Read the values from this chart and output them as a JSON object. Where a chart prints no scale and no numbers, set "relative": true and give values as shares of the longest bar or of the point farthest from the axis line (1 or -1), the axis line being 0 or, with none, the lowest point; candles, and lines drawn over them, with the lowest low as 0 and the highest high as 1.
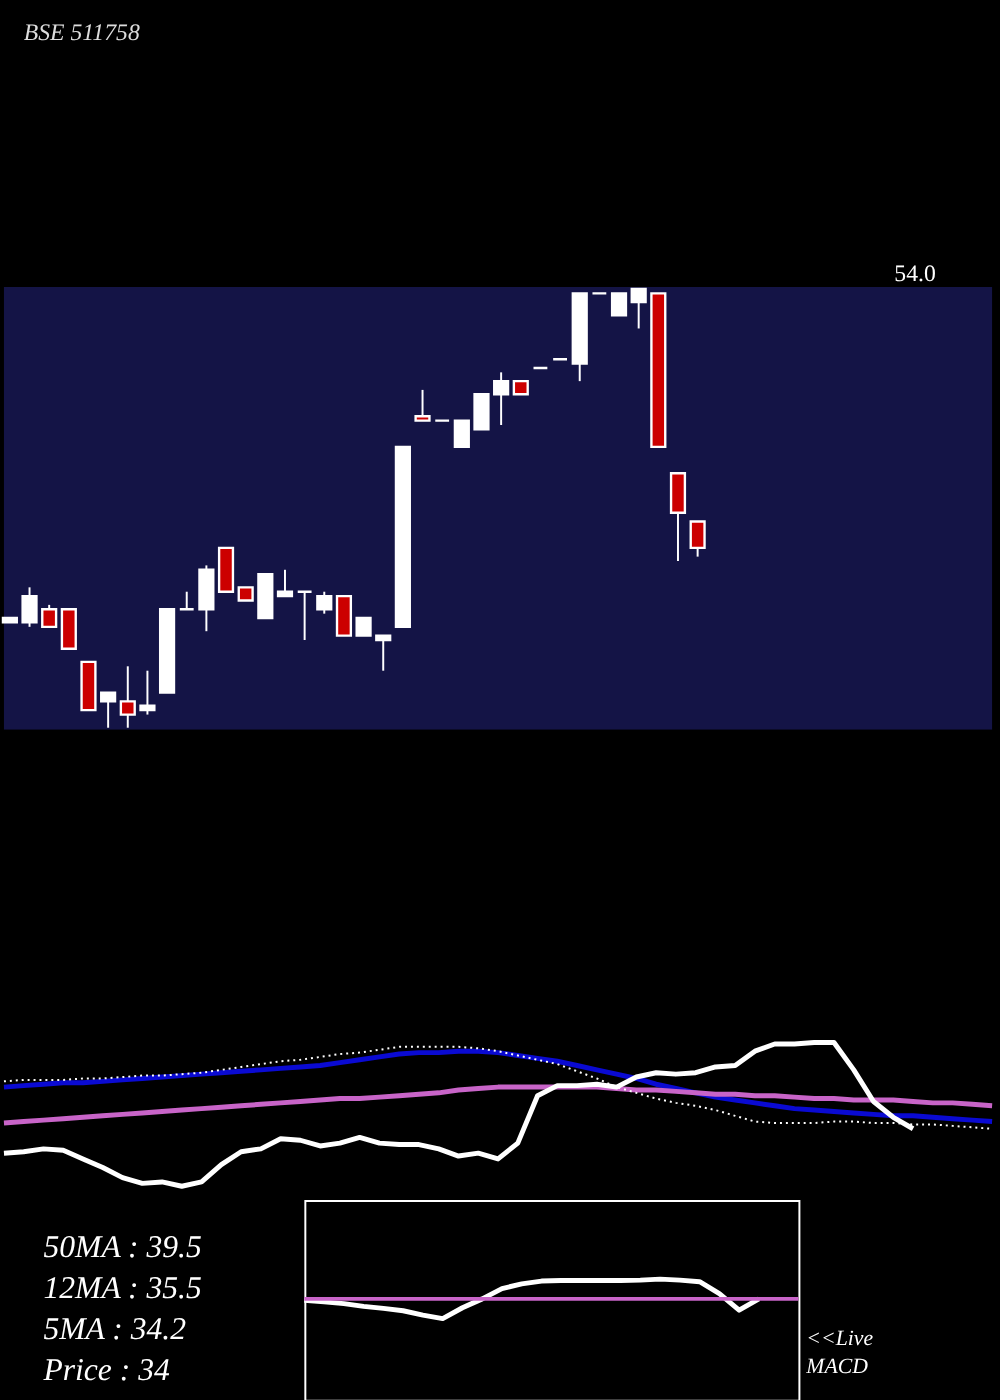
{
  "chart_data": [
    {
      "type": "candlestick",
      "title": "BSE 511758",
      "relative": true,
      "annotations": [
        "54.0"
      ],
      "categories": [
        null,
        null,
        null,
        null,
        null,
        null,
        null,
        null,
        null,
        null,
        null,
        null,
        null,
        null,
        null,
        null,
        null,
        null,
        null,
        null,
        null,
        null,
        null,
        null,
        null,
        null,
        null,
        null,
        null,
        null,
        null,
        null,
        null,
        null,
        null,
        null
      ],
      "ohlc": [
        [
          0.24,
          0.25,
          0.24,
          0.25
        ],
        [
          0.24,
          0.32,
          0.23,
          0.3
        ],
        [
          0.27,
          0.28,
          0.23,
          0.23
        ],
        [
          0.27,
          0.27,
          0.18,
          0.18
        ],
        [
          0.15,
          0.15,
          0.04,
          0.04
        ],
        [
          0.06,
          0.08,
          0,
          0.08
        ],
        [
          0.06,
          0.14,
          0,
          0.03
        ],
        [
          0.04,
          0.13,
          0.03,
          0.05
        ],
        [
          0.08,
          0.27,
          0.08,
          0.27
        ],
        [
          0.27,
          0.31,
          0.27,
          0.27
        ],
        [
          0.27,
          0.37,
          0.22,
          0.36
        ],
        [
          0.41,
          0.41,
          0.31,
          0.31
        ],
        [
          0.32,
          0.32,
          0.29,
          0.29
        ],
        [
          0.25,
          0.35,
          0.25,
          0.35
        ],
        [
          0.3,
          0.36,
          0.3,
          0.31
        ],
        [
          0.31,
          0.31,
          0.2,
          0.31
        ],
        [
          0.27,
          0.31,
          0.26,
          0.3
        ],
        [
          0.3,
          0.3,
          0.21,
          0.21
        ],
        [
          0.21,
          0.25,
          0.21,
          0.25
        ],
        [
          0.2,
          0.21,
          0.13,
          0.21
        ],
        [
          0.23,
          0.64,
          0.23,
          0.64
        ],
        [
          0.71,
          0.77,
          0.7,
          0.7
        ],
        [
          0.7,
          0.7,
          0.7,
          0.7
        ],
        [
          0.64,
          0.7,
          0.64,
          0.7
        ],
        [
          0.68,
          0.76,
          0.68,
          0.76
        ],
        [
          0.76,
          0.81,
          0.69,
          0.79
        ],
        [
          0.79,
          0.79,
          0.76,
          0.76
        ],
        [
          0.82,
          0.82,
          0.82,
          0.82
        ],
        [
          0.84,
          0.84,
          0.84,
          0.84
        ],
        [
          0.83,
          0.99,
          0.79,
          0.99
        ],
        [
          0.99,
          0.99,
          0.99,
          0.99
        ],
        [
          0.94,
          0.99,
          0.94,
          0.99
        ],
        [
          0.97,
          1,
          0.91,
          1
        ],
        [
          0.99,
          0.99,
          0.64,
          0.64
        ],
        [
          0.58,
          0.58,
          0.38,
          0.49
        ],
        [
          0.47,
          0.47,
          0.39,
          0.41
        ]
      ],
      "colors": [
        "#ffffff",
        "#ffffff",
        "#cc0000",
        "#cc0000",
        "#cc0000",
        "#ffffff",
        "#cc0000",
        "#ffffff",
        "#ffffff",
        "#ffffff",
        "#ffffff",
        "#cc0000",
        "#cc0000",
        "#ffffff",
        "#ffffff",
        "#ffffff",
        "#ffffff",
        "#cc0000",
        "#ffffff",
        "#ffffff",
        "#ffffff",
        "#cc0000",
        "#ffffff",
        "#ffffff",
        "#ffffff",
        "#ffffff",
        "#cc0000",
        "#ffffff",
        "#ffffff",
        "#ffffff",
        "#ffffff",
        "#ffffff",
        "#ffffff",
        "#cc0000",
        "#cc0000",
        "#cc0000"
      ]
    },
    {
      "type": "line",
      "relative": true,
      "categories": [
        null,
        null,
        null,
        null,
        null,
        null,
        null,
        null,
        null,
        null,
        null,
        null,
        null,
        null,
        null,
        null,
        null,
        null,
        null,
        null,
        null,
        null,
        null,
        null,
        null,
        null,
        null,
        null,
        null,
        null,
        null,
        null,
        null,
        null,
        null,
        null,
        null,
        null,
        null,
        null,
        null,
        null,
        null,
        null,
        null,
        null,
        null,
        null,
        null,
        null,
        null
      ],
      "series": [
        {
          "color": "#0a0ad2",
          "values": [
            0.69,
            0.7,
            0.71,
            0.72,
            0.72,
            0.73,
            0.74,
            0.75,
            0.76,
            0.77,
            0.78,
            0.79,
            0.8,
            0.81,
            0.82,
            0.83,
            0.84,
            0.86,
            0.88,
            0.9,
            0.92,
            0.93,
            0.93,
            0.94,
            0.94,
            0.93,
            0.91,
            0.89,
            0.87,
            0.84,
            0.81,
            0.78,
            0.75,
            0.71,
            0.68,
            0.65,
            0.62,
            0.6,
            0.58,
            0.56,
            0.54,
            0.53,
            0.52,
            0.51,
            0.5,
            0.49,
            0.49,
            0.48,
            0.47,
            0.46,
            0.45
          ]
        },
        {
          "color": "#c864c8",
          "values": [
            0.44,
            0.45,
            0.46,
            0.47,
            0.48,
            0.49,
            0.5,
            0.51,
            0.52,
            0.53,
            0.54,
            0.55,
            0.56,
            0.57,
            0.58,
            0.59,
            0.6,
            0.61,
            0.61,
            0.62,
            0.63,
            0.64,
            0.65,
            0.67,
            0.68,
            0.69,
            0.69,
            0.69,
            0.69,
            0.69,
            0.69,
            0.68,
            0.67,
            0.67,
            0.66,
            0.65,
            0.64,
            0.64,
            0.63,
            0.63,
            0.62,
            0.61,
            0.61,
            0.6,
            0.6,
            0.6,
            0.59,
            0.58,
            0.58,
            0.57,
            0.56
          ]
        },
        {
          "color": "#ffffff",
          "line_style": "dotted",
          "values": [
            0.73,
            0.74,
            0.74,
            0.74,
            0.75,
            0.75,
            0.76,
            0.77,
            0.77,
            0.78,
            0.79,
            0.81,
            0.83,
            0.85,
            0.87,
            0.88,
            0.9,
            0.92,
            0.93,
            0.95,
            0.97,
            0.97,
            0.97,
            0.97,
            0.96,
            0.94,
            0.91,
            0.88,
            0.85,
            0.8,
            0.75,
            0.69,
            0.65,
            0.61,
            0.58,
            0.56,
            0.53,
            0.49,
            0.45,
            0.44,
            0.44,
            0.44,
            0.45,
            0.45,
            0.44,
            0.44,
            0.43,
            0.43,
            0.42,
            0.41,
            0.4
          ]
        },
        {
          "color": "#ffffff",
          "values": [
            0.23,
            0.24,
            0.26,
            0.25,
            0.19,
            0.13,
            0.06,
            0.02,
            0.03,
            0,
            0.03,
            0.15,
            0.24,
            0.26,
            0.33,
            0.32,
            0.28,
            0.3,
            0.34,
            0.3,
            0.29,
            0.29,
            0.26,
            0.21,
            0.23,
            0.19,
            0.3,
            0.63,
            0.7,
            0.7,
            0.71,
            0.69,
            0.76,
            0.79,
            0.78,
            0.79,
            0.83,
            0.84,
            0.94,
            0.99,
            0.99,
            1.0,
            1.0,
            0.81,
            0.59,
            0.48,
            0.4,
            null,
            null,
            null,
            null
          ]
        }
      ]
    },
    {
      "type": "line",
      "relative": true,
      "annotations": [
        "50MA : 39.5",
        "12MA : 35.5",
        "5MA : 34.2",
        "Price   : 34",
        "<<Live\nMACD"
      ],
      "categories": [
        null,
        null,
        null,
        null,
        null,
        null,
        null,
        null,
        null,
        null,
        null,
        null,
        null,
        null,
        null,
        null,
        null,
        null,
        null,
        null,
        null,
        null,
        null,
        null,
        null,
        null
      ],
      "ref_lines": [
        {
          "axis": "y",
          "value": 0,
          "color": "#c864c8"
        }
      ],
      "series": [
        {
          "color": "#ffffff",
          "values": [
            -0.07,
            -0.15,
            -0.24,
            -0.38,
            -0.48,
            -0.6,
            -0.82,
            -1.0,
            -0.45,
            0,
            0.52,
            0.76,
            0.9,
            0.93,
            0.93,
            0.93,
            0.93,
            0.95,
            1.0,
            0.95,
            0.87,
            0.27,
            -0.57,
            0,
            null,
            null
          ]
        }
      ]
    }
  ]
}
